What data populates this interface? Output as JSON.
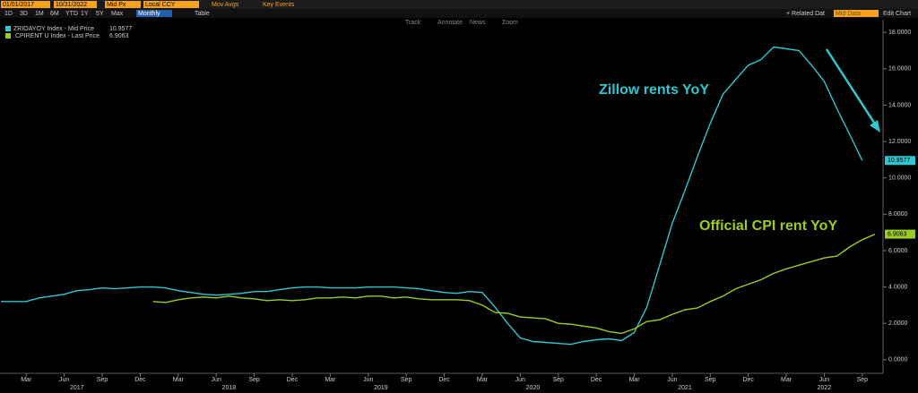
{
  "toolbar": {
    "start_date": "01/01/2017",
    "end_date": "10/31/2022",
    "price": "Mid Px",
    "currency": "Local CCY",
    "mov_avgs": "Mov Avgs",
    "key_events": "Key Events",
    "ranges": [
      "1D",
      "3D",
      "1M",
      "6M",
      "YTD",
      "1Y",
      "5Y",
      "Max"
    ],
    "period": "Monthly",
    "table": "Table",
    "tools": [
      "Track",
      "Annotate",
      "News",
      "Zoom"
    ],
    "related": "+ Related Dat",
    "related_field": "Mid Data",
    "edit": "Edit Chart"
  },
  "chart_data": {
    "type": "line",
    "annotations": [
      "Zillow rents YoY",
      "Official CPI rent YoY"
    ],
    "x": [
      "2017-01",
      "2017-02",
      "2017-03",
      "2017-04",
      "2017-05",
      "2017-06",
      "2017-07",
      "2017-08",
      "2017-09",
      "2017-10",
      "2017-11",
      "2017-12",
      "2018-01",
      "2018-02",
      "2018-03",
      "2018-04",
      "2018-05",
      "2018-06",
      "2018-07",
      "2018-08",
      "2018-09",
      "2018-10",
      "2018-11",
      "2018-12",
      "2019-01",
      "2019-02",
      "2019-03",
      "2019-04",
      "2019-05",
      "2019-06",
      "2019-07",
      "2019-08",
      "2019-09",
      "2019-10",
      "2019-11",
      "2019-12",
      "2020-01",
      "2020-02",
      "2020-03",
      "2020-04",
      "2020-05",
      "2020-06",
      "2020-07",
      "2020-08",
      "2020-09",
      "2020-10",
      "2020-11",
      "2020-12",
      "2021-01",
      "2021-02",
      "2021-03",
      "2021-04",
      "2021-05",
      "2021-06",
      "2021-07",
      "2021-08",
      "2021-09",
      "2021-10",
      "2021-11",
      "2021-12",
      "2022-01",
      "2022-02",
      "2022-03",
      "2022-04",
      "2022-05",
      "2022-06",
      "2022-07",
      "2022-08",
      "2022-09",
      "2022-10"
    ],
    "series": [
      {
        "name": "ZRIOAYOY Index - Mid Price",
        "color": "#2fc7d1",
        "values": [
          3.2,
          3.2,
          3.2,
          3.4,
          3.5,
          3.6,
          3.8,
          3.85,
          3.95,
          3.9,
          3.95,
          4.0,
          4.0,
          3.95,
          3.8,
          3.7,
          3.6,
          3.55,
          3.6,
          3.65,
          3.75,
          3.75,
          3.85,
          3.95,
          4.0,
          4.0,
          3.95,
          3.95,
          3.95,
          4.0,
          4.0,
          4.0,
          3.95,
          3.9,
          3.8,
          3.7,
          3.65,
          3.75,
          3.7,
          2.9,
          2.0,
          1.2,
          1.0,
          0.95,
          0.9,
          0.85,
          1.0,
          1.1,
          1.15,
          1.05,
          1.5,
          2.9,
          5.2,
          7.5,
          9.3,
          11.2,
          13.0,
          14.6,
          15.4,
          16.2,
          16.5,
          17.2,
          17.1,
          17.0,
          16.2,
          15.3,
          13.8,
          12.4,
          10.9577,
          null
        ]
      },
      {
        "name": ".CPIRENT U Index - Last Price",
        "color": "#9acd1f",
        "values": [
          null,
          null,
          null,
          null,
          null,
          null,
          null,
          null,
          null,
          null,
          null,
          null,
          3.2,
          3.15,
          3.3,
          3.4,
          3.45,
          3.4,
          3.5,
          3.4,
          3.35,
          3.25,
          3.3,
          3.25,
          3.3,
          3.4,
          3.4,
          3.45,
          3.4,
          3.5,
          3.5,
          3.4,
          3.45,
          3.35,
          3.3,
          3.3,
          3.3,
          3.25,
          3.0,
          2.6,
          2.55,
          2.35,
          2.3,
          2.25,
          2.0,
          1.95,
          1.85,
          1.75,
          1.55,
          1.45,
          1.7,
          2.1,
          2.2,
          2.5,
          2.75,
          2.85,
          3.2,
          3.5,
          3.9,
          4.15,
          4.4,
          4.75,
          5.0,
          5.2,
          5.4,
          5.6,
          5.7,
          6.2,
          6.6,
          6.9063
        ]
      }
    ],
    "ylim": [
      -0.5,
      18.7
    ],
    "yticks": [
      {
        "value": 0,
        "label": "0.0000"
      },
      {
        "value": 2,
        "label": "2.0000"
      },
      {
        "value": 4,
        "label": "4.0000"
      },
      {
        "value": 6,
        "label": "6.0000"
      },
      {
        "value": 8,
        "label": "8.0000"
      },
      {
        "value": 10,
        "label": "10.0000"
      },
      {
        "value": 12,
        "label": "12.0000"
      },
      {
        "value": 14,
        "label": "14.0000"
      },
      {
        "value": 16,
        "label": "16.0000"
      },
      {
        "value": 18,
        "label": "18.0000"
      }
    ],
    "xticks": [
      {
        "value": "2017-03",
        "label": "Mar"
      },
      {
        "value": "2017-06",
        "label": "Jun"
      },
      {
        "value": "2017-09",
        "label": "Sep"
      },
      {
        "value": "2017-12",
        "label": "Dec"
      },
      {
        "value": "2018-03",
        "label": "Mar"
      },
      {
        "value": "2018-06",
        "label": "Jun"
      },
      {
        "value": "2018-09",
        "label": "Sep"
      },
      {
        "value": "2018-12",
        "label": "Dec"
      },
      {
        "value": "2019-03",
        "label": "Mar"
      },
      {
        "value": "2019-06",
        "label": "Jun"
      },
      {
        "value": "2019-09",
        "label": "Sep"
      },
      {
        "value": "2019-12",
        "label": "Dec"
      },
      {
        "value": "2020-03",
        "label": "Mar"
      },
      {
        "value": "2020-06",
        "label": "Jun"
      },
      {
        "value": "2020-09",
        "label": "Sep"
      },
      {
        "value": "2020-12",
        "label": "Dec"
      },
      {
        "value": "2021-03",
        "label": "Mar"
      },
      {
        "value": "2021-06",
        "label": "Jun"
      },
      {
        "value": "2021-09",
        "label": "Sep"
      },
      {
        "value": "2021-12",
        "label": "Dec"
      },
      {
        "value": "2022-03",
        "label": "Mar"
      },
      {
        "value": "2022-06",
        "label": "Jun"
      },
      {
        "value": "2022-09",
        "label": "Sep"
      }
    ],
    "year_labels": [
      {
        "value": "2017-07",
        "label": "2017"
      },
      {
        "value": "2018-07",
        "label": "2018"
      },
      {
        "value": "2019-07",
        "label": "2019"
      },
      {
        "value": "2020-07",
        "label": "2020"
      },
      {
        "value": "2021-07",
        "label": "2021"
      },
      {
        "value": "2022-06",
        "label": "2022"
      }
    ],
    "legend": "upper left"
  }
}
